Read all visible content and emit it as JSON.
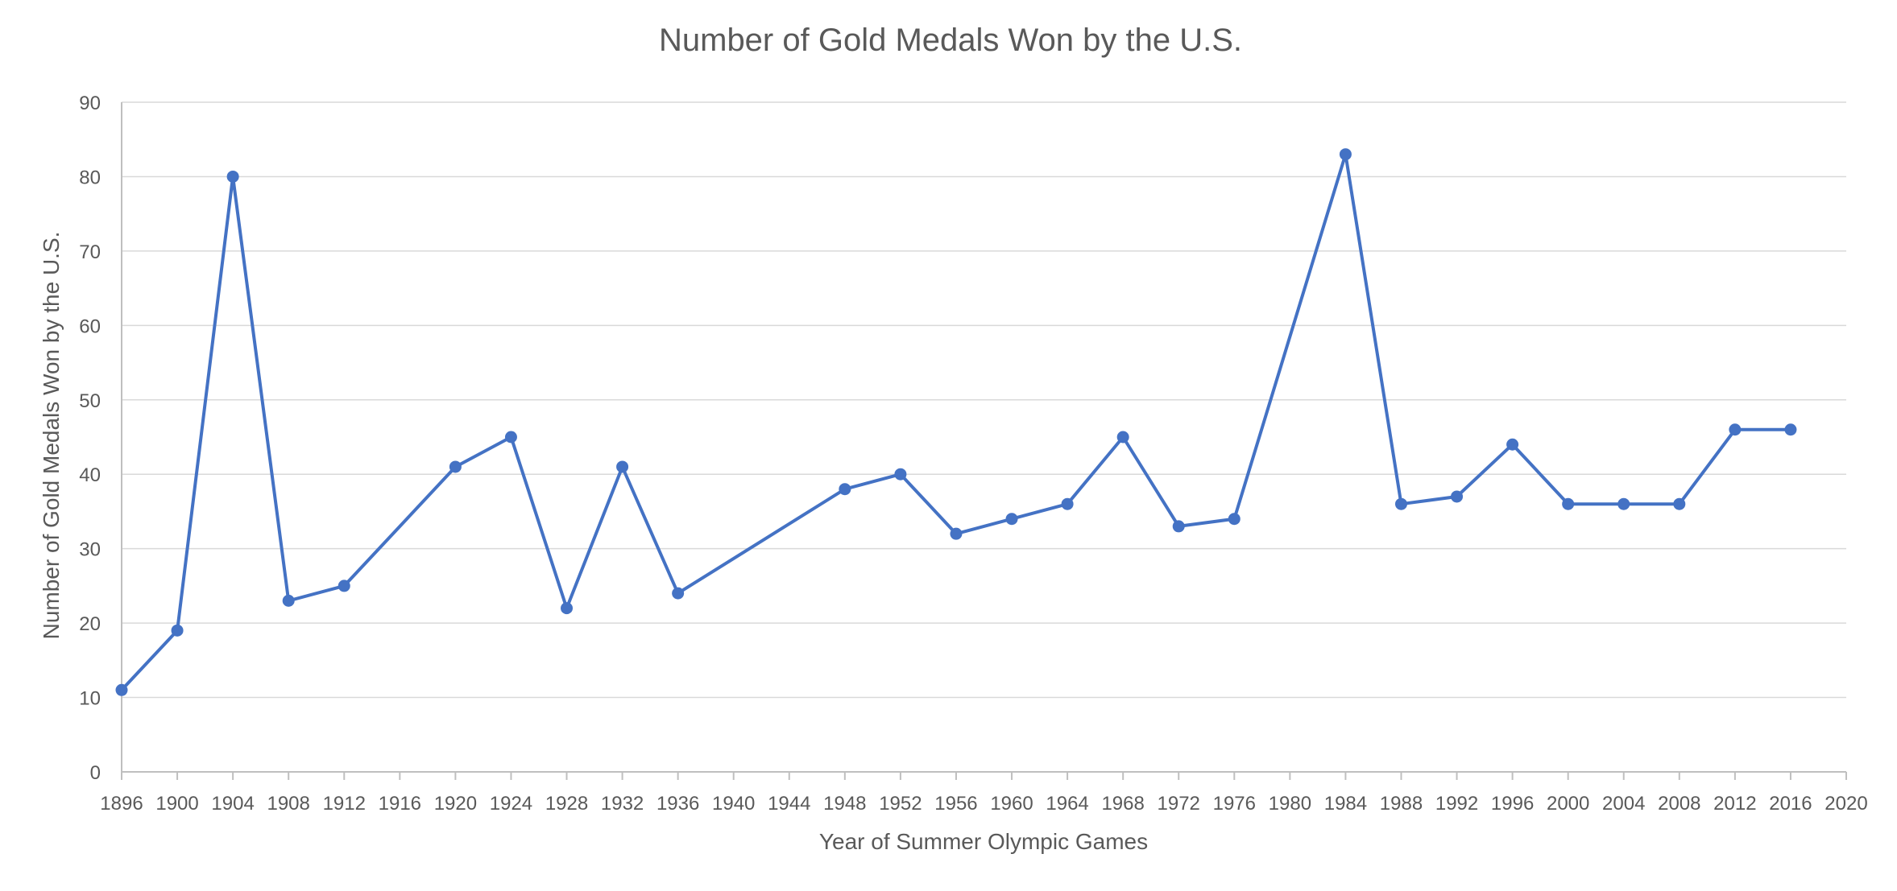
{
  "chart_data": {
    "type": "line",
    "title": "Number of Gold Medals Won by the U.S.",
    "xlabel": "Year of Summer Olympic Games",
    "ylabel": "Number of Gold Medals Won by the U.S.",
    "xlim": [
      1896,
      2020
    ],
    "ylim": [
      0,
      90
    ],
    "x_ticks": [
      1896,
      1900,
      1904,
      1908,
      1912,
      1916,
      1920,
      1924,
      1928,
      1932,
      1936,
      1940,
      1944,
      1948,
      1952,
      1956,
      1960,
      1964,
      1968,
      1972,
      1976,
      1980,
      1984,
      1988,
      1992,
      1996,
      2000,
      2004,
      2008,
      2012,
      2016,
      2020
    ],
    "y_ticks": [
      0,
      10,
      20,
      30,
      40,
      50,
      60,
      70,
      80,
      90
    ],
    "grid": true,
    "legend": "none",
    "series": [
      {
        "color": "#4472c4",
        "x": [
          1896,
          1900,
          1904,
          1908,
          1912,
          1920,
          1924,
          1928,
          1932,
          1936,
          1948,
          1952,
          1956,
          1960,
          1964,
          1968,
          1972,
          1976,
          1984,
          1988,
          1992,
          1996,
          2000,
          2004,
          2008,
          2012,
          2016
        ],
        "y": [
          11,
          19,
          80,
          23,
          25,
          41,
          45,
          22,
          41,
          24,
          38,
          40,
          32,
          34,
          36,
          45,
          33,
          34,
          83,
          36,
          37,
          44,
          36,
          36,
          36,
          46,
          46
        ]
      }
    ]
  }
}
